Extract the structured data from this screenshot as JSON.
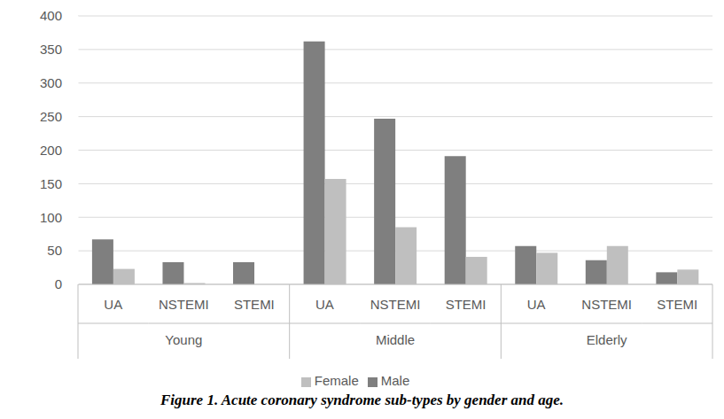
{
  "chart_data": {
    "type": "bar",
    "caption": "Figure 1. Acute coronary syndrome sub-types by gender and age.",
    "categories": [
      "UA",
      "NSTEMI",
      "STEMI",
      "UA",
      "NSTEMI",
      "STEMI",
      "UA",
      "NSTEMI",
      "STEMI"
    ],
    "groups": [
      "Young",
      "Middle",
      "Elderly"
    ],
    "series": [
      {
        "name": "Male",
        "color": "#7f7f7f",
        "values": [
          67,
          33,
          33,
          362,
          247,
          191,
          57,
          36,
          18
        ]
      },
      {
        "name": "Female",
        "color": "#bfbfbf",
        "values": [
          23,
          2,
          0,
          157,
          85,
          41,
          47,
          57,
          22
        ]
      }
    ],
    "ylim": [
      0,
      400
    ],
    "yticks": [
      0,
      50,
      100,
      150,
      200,
      250,
      300,
      350,
      400
    ],
    "grid": true,
    "legend": "bottom"
  }
}
